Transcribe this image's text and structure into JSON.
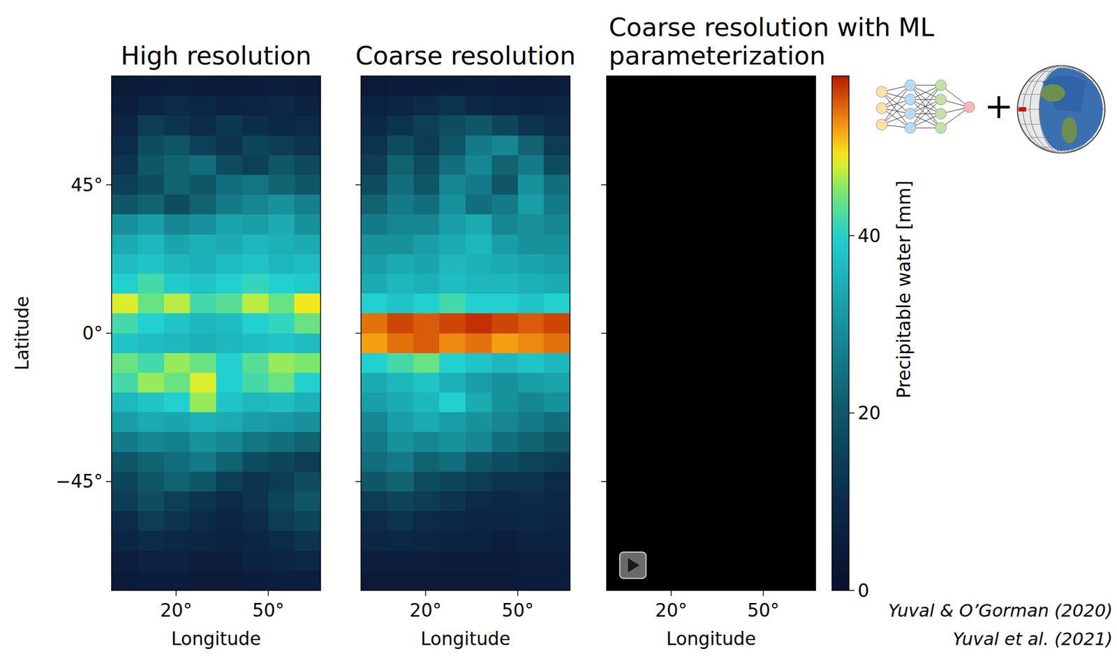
{
  "chart_data": [
    {
      "type": "heatmap",
      "title": "High resolution",
      "xlabel": "Longitude",
      "ylabel": "Latitude",
      "xlim": [
        -1,
        67
      ],
      "ylim": [
        -78,
        78
      ],
      "xticks": [
        {
          "value": 20,
          "label": "20°"
        },
        {
          "value": 50,
          "label": "50°"
        }
      ],
      "yticks": [
        {
          "value": 45,
          "label": "45°"
        },
        {
          "value": 0,
          "label": "0°"
        },
        {
          "value": -45,
          "label": "−45°"
        }
      ],
      "x": [
        3.25,
        11.75,
        20.25,
        28.75,
        37.25,
        45.75,
        54.25,
        62.75
      ],
      "y": [
        75,
        69,
        63,
        57,
        51,
        45,
        39,
        33,
        27,
        21,
        15,
        9,
        3,
        -3,
        -9,
        -15,
        -21,
        -27,
        -33,
        -39,
        -45,
        -51,
        -57,
        -63,
        -69,
        -75
      ],
      "cells": [
        [
          4,
          5,
          6,
          5,
          4,
          5,
          6,
          5
        ],
        [
          6,
          8,
          10,
          9,
          7,
          8,
          9,
          7
        ],
        [
          8,
          14,
          12,
          10,
          13,
          11,
          9,
          10
        ],
        [
          10,
          18,
          20,
          15,
          12,
          16,
          14,
          12
        ],
        [
          12,
          20,
          22,
          24,
          18,
          15,
          20,
          17
        ],
        [
          15,
          18,
          22,
          20,
          24,
          25,
          22,
          20
        ],
        [
          20,
          22,
          18,
          22,
          26,
          28,
          30,
          27
        ],
        [
          30,
          32,
          28,
          30,
          33,
          32,
          34,
          30
        ],
        [
          34,
          36,
          33,
          35,
          34,
          36,
          35,
          34
        ],
        [
          37,
          38,
          36,
          35,
          37,
          38,
          36,
          37
        ],
        [
          40,
          42,
          39,
          38,
          40,
          41,
          40,
          39
        ],
        [
          48,
          44,
          47,
          42,
          43,
          47,
          44,
          49
        ],
        [
          42,
          40,
          38,
          36,
          37,
          40,
          41,
          44
        ],
        [
          38,
          37,
          36,
          35,
          36,
          37,
          38,
          37
        ],
        [
          44,
          42,
          46,
          44,
          40,
          43,
          46,
          45
        ],
        [
          42,
          46,
          44,
          48,
          40,
          42,
          44,
          40
        ],
        [
          36,
          38,
          40,
          46,
          38,
          36,
          37,
          35
        ],
        [
          32,
          34,
          33,
          35,
          34,
          32,
          31,
          30
        ],
        [
          26,
          28,
          27,
          30,
          28,
          25,
          24,
          22
        ],
        [
          20,
          22,
          24,
          26,
          22,
          18,
          16,
          14
        ],
        [
          16,
          20,
          22,
          20,
          15,
          12,
          14,
          18
        ],
        [
          14,
          18,
          15,
          12,
          10,
          12,
          16,
          20
        ],
        [
          10,
          14,
          12,
          10,
          8,
          10,
          14,
          16
        ],
        [
          8,
          10,
          9,
          8,
          7,
          8,
          10,
          12
        ],
        [
          6,
          7,
          7,
          6,
          6,
          7,
          8,
          9
        ],
        [
          4,
          5,
          5,
          4,
          4,
          5,
          6,
          6
        ]
      ]
    },
    {
      "type": "heatmap",
      "title": "Coarse resolution",
      "xlabel": "Longitude",
      "tick_labels": "x",
      "xlim": [
        -1,
        67
      ],
      "ylim": [
        -78,
        78
      ],
      "xticks": [
        {
          "value": 20,
          "label": "20°"
        },
        {
          "value": 50,
          "label": "50°"
        }
      ],
      "yticks": [
        45,
        0,
        -45
      ],
      "x": [
        3.25,
        11.75,
        20.25,
        28.75,
        37.25,
        45.75,
        54.25,
        62.75
      ],
      "y": [
        75,
        69,
        63,
        57,
        51,
        45,
        39,
        33,
        27,
        21,
        15,
        9,
        3,
        -3,
        -9,
        -15,
        -21,
        -27,
        -33,
        -39,
        -45,
        -51,
        -57,
        -63,
        -69,
        -75
      ],
      "cells": [
        [
          4,
          5,
          5,
          5,
          6,
          5,
          4,
          5
        ],
        [
          7,
          8,
          10,
          12,
          9,
          8,
          7,
          8
        ],
        [
          9,
          12,
          15,
          18,
          20,
          16,
          12,
          10
        ],
        [
          12,
          18,
          14,
          20,
          26,
          28,
          22,
          14
        ],
        [
          14,
          22,
          18,
          24,
          28,
          22,
          26,
          18
        ],
        [
          18,
          24,
          20,
          28,
          26,
          20,
          30,
          24
        ],
        [
          22,
          26,
          24,
          30,
          24,
          26,
          32,
          26
        ],
        [
          26,
          28,
          28,
          32,
          34,
          28,
          30,
          28
        ],
        [
          30,
          30,
          32,
          34,
          36,
          32,
          30,
          30
        ],
        [
          32,
          34,
          33,
          36,
          35,
          34,
          33,
          32
        ],
        [
          34,
          36,
          35,
          37,
          36,
          36,
          35,
          34
        ],
        [
          40,
          38,
          40,
          42,
          40,
          40,
          38,
          40
        ],
        [
          54,
          56,
          55,
          56,
          57,
          56,
          55,
          56
        ],
        [
          52,
          54,
          55,
          53,
          54,
          52,
          53,
          54
        ],
        [
          40,
          42,
          44,
          40,
          38,
          36,
          38,
          36
        ],
        [
          34,
          36,
          38,
          35,
          32,
          30,
          32,
          33
        ],
        [
          32,
          34,
          36,
          40,
          34,
          30,
          28,
          30
        ],
        [
          28,
          32,
          34,
          32,
          30,
          28,
          26,
          24
        ],
        [
          26,
          30,
          28,
          30,
          28,
          24,
          22,
          20
        ],
        [
          24,
          26,
          22,
          24,
          20,
          18,
          16,
          14
        ],
        [
          20,
          22,
          18,
          16,
          14,
          12,
          12,
          10
        ],
        [
          14,
          16,
          14,
          12,
          10,
          9,
          10,
          9
        ],
        [
          10,
          12,
          10,
          9,
          8,
          8,
          9,
          8
        ],
        [
          8,
          9,
          8,
          7,
          7,
          6,
          7,
          7
        ],
        [
          6,
          6,
          6,
          5,
          5,
          5,
          6,
          6
        ],
        [
          4,
          4,
          4,
          4,
          4,
          4,
          5,
          5
        ]
      ]
    },
    {
      "type": "heatmap",
      "title": "Coarse resolution with ML parameterization",
      "xlabel": "Longitude",
      "tick_labels": "x",
      "xlim": [
        -1,
        67
      ],
      "ylim": [
        -78,
        78
      ],
      "xticks": [
        {
          "value": 20,
          "label": "20°"
        },
        {
          "value": 50,
          "label": "50°"
        }
      ],
      "yticks": [
        45,
        0,
        -45
      ]
    }
  ],
  "colorbar": {
    "label": "Precipitable water [mm]",
    "range": [
      0,
      58
    ],
    "ticks": [
      0,
      20,
      40
    ]
  },
  "citations": [
    "Yuval & O’Gorman (2020)",
    "Yuval et al. (2021)"
  ]
}
